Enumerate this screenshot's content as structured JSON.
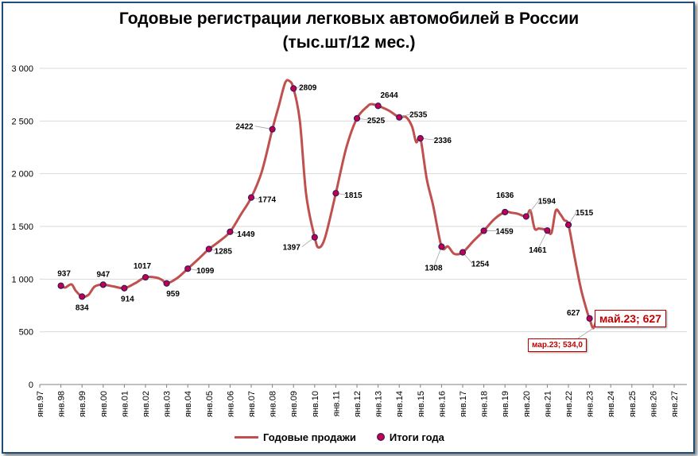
{
  "chart": {
    "title_line1": "Годовые регистрации легковых автомобилей в России",
    "title_line2": "(тыс.шт/12 мес.)"
  },
  "legend": {
    "line_label": "Годовые продажи",
    "dot_label": "Итоги года"
  },
  "callouts": {
    "last": "май.23; 627",
    "min": "мар.23; 534,0"
  },
  "colors": {
    "line": "#c0504d",
    "dot": "#c0004f",
    "callout": "#c00000",
    "frame": "#1f4e79"
  },
  "chart_data": {
    "type": "line",
    "title": "Годовые регистрации легковых автомобилей в России (тыс.шт/12 мес.)",
    "ylim": [
      0,
      3000
    ],
    "y_ticks": [
      "0",
      "500",
      "1 000",
      "1 500",
      "2 000",
      "2 500",
      "3 000"
    ],
    "x_ticks": [
      "янв.97",
      "янв.98",
      "янв.99",
      "янв.00",
      "янв.01",
      "янв.02",
      "янв.03",
      "янв.04",
      "янв.05",
      "янв.06",
      "янв.07",
      "янв.08",
      "янв.09",
      "янв.10",
      "янв.11",
      "янв.12",
      "янв.13",
      "янв.14",
      "янв.15",
      "янв.16",
      "янв.17",
      "янв.18",
      "янв.19",
      "янв.20",
      "янв.21",
      "янв.22",
      "янв.23",
      "янв.24",
      "янв.25",
      "янв.26",
      "янв.27"
    ],
    "grid": "horizontal",
    "series": [
      {
        "name": "Годовые продажи",
        "x": [
          1998.0,
          1998.2,
          1998.5,
          1998.7,
          1999.0,
          1999.3,
          1999.6,
          2000.0,
          2000.5,
          2001.0,
          2001.5,
          2002.0,
          2002.5,
          2002.8,
          2003.0,
          2003.5,
          2004.0,
          2004.5,
          2005.0,
          2005.5,
          2006.0,
          2006.5,
          2007.0,
          2007.5,
          2008.0,
          2008.3,
          2008.6,
          2008.8,
          2009.0,
          2009.3,
          2009.6,
          2010.0,
          2010.2,
          2010.5,
          2011.0,
          2011.5,
          2012.0,
          2012.5,
          2012.7,
          2013.0,
          2013.5,
          2014.0,
          2014.3,
          2014.6,
          2014.8,
          2015.0,
          2015.3,
          2015.6,
          2016.0,
          2016.3,
          2016.6,
          2017.0,
          2017.5,
          2018.0,
          2018.5,
          2019.0,
          2019.3,
          2019.6,
          2020.0,
          2020.2,
          2020.4,
          2020.6,
          2020.9,
          2021.0,
          2021.2,
          2021.4,
          2021.6,
          2021.8,
          2022.0,
          2022.3,
          2022.6,
          2022.9,
          2023.0,
          2023.17,
          2023.33
        ],
        "y": [
          937,
          920,
          950,
          890,
          834,
          850,
          930,
          947,
          930,
          914,
          960,
          1017,
          1015,
          990,
          959,
          1010,
          1099,
          1190,
          1285,
          1360,
          1449,
          1610,
          1774,
          2020,
          2422,
          2640,
          2860,
          2880,
          2809,
          2500,
          1800,
          1397,
          1300,
          1400,
          1815,
          2250,
          2525,
          2640,
          2660,
          2644,
          2600,
          2535,
          2540,
          2450,
          2300,
          2336,
          1950,
          1700,
          1308,
          1310,
          1240,
          1254,
          1360,
          1459,
          1570,
          1636,
          1630,
          1620,
          1594,
          1650,
          1480,
          1480,
          1470,
          1461,
          1440,
          1650,
          1620,
          1560,
          1515,
          1200,
          900,
          680,
          627,
          534,
          627
        ]
      },
      {
        "name": "Итоги года",
        "x": [
          1998,
          1999,
          2000,
          2001,
          2002,
          2003,
          2004,
          2005,
          2006,
          2007,
          2008,
          2009,
          2010,
          2011,
          2012,
          2013,
          2014,
          2015,
          2016,
          2017,
          2018,
          2019,
          2020,
          2021,
          2022,
          2023
        ],
        "values": [
          937,
          834,
          947,
          914,
          1017,
          959,
          1099,
          1285,
          1449,
          1774,
          2422,
          2809,
          1397,
          1815,
          2525,
          2644,
          2535,
          2336,
          1308,
          1254,
          1459,
          1636,
          1594,
          1461,
          1515,
          627
        ],
        "labels": [
          "937",
          "834",
          "947",
          "914",
          "1017",
          "959",
          "1099",
          "1285",
          "1449",
          "1774",
          "2422",
          "2809",
          "1397",
          "1815",
          "2525",
          "2644",
          "2535",
          "2336",
          "1308",
          "1254",
          "1459",
          "1636",
          "1594",
          "1461",
          "1515",
          "627"
        ]
      }
    ],
    "annotations": [
      "май.23; 627",
      "мар.23; 534,0"
    ]
  }
}
